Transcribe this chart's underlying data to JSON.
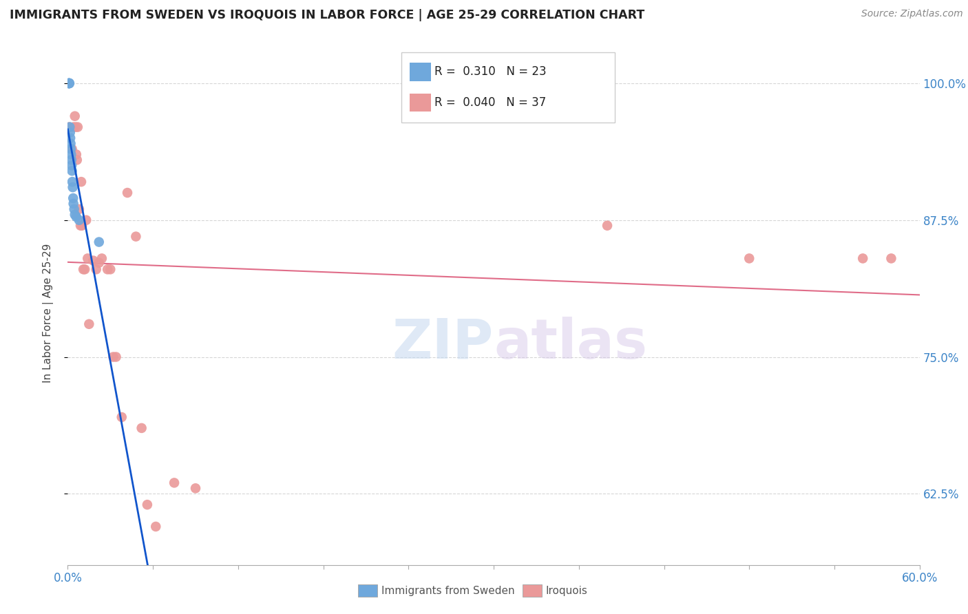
{
  "title": "IMMIGRANTS FROM SWEDEN VS IROQUOIS IN LABOR FORCE | AGE 25-29 CORRELATION CHART",
  "source": "Source: ZipAtlas.com",
  "ylabel": "In Labor Force | Age 25-29",
  "xlim": [
    0.0,
    0.6
  ],
  "ylim": [
    0.56,
    1.02
  ],
  "yticks": [
    0.625,
    0.75,
    0.875,
    1.0
  ],
  "ytick_labels": [
    "62.5%",
    "75.0%",
    "87.5%",
    "100.0%"
  ],
  "xticks": [
    0.0,
    0.06,
    0.12,
    0.18,
    0.24,
    0.3,
    0.36,
    0.42,
    0.48,
    0.54,
    0.6
  ],
  "xtick_labels_show": {
    "0.0": "0.0%",
    "0.60": "60.0%"
  },
  "sweden_R": 0.31,
  "sweden_N": 23,
  "iroquois_R": 0.04,
  "iroquois_N": 37,
  "sweden_color": "#6fa8dc",
  "iroquois_color": "#ea9999",
  "sweden_line_color": "#1155cc",
  "iroquois_line_color": "#e06c88",
  "watermark_zip": "ZIP",
  "watermark_atlas": "atlas",
  "sweden_x": [
    0.0008,
    0.0008,
    0.001,
    0.001,
    0.0012,
    0.0014,
    0.0016,
    0.0018,
    0.002,
    0.0022,
    0.0024,
    0.0026,
    0.0028,
    0.003,
    0.0032,
    0.0035,
    0.0038,
    0.004,
    0.0045,
    0.005,
    0.006,
    0.008,
    0.022
  ],
  "sweden_y": [
    1.0,
    1.0,
    1.0,
    1.0,
    1.0,
    0.96,
    0.955,
    0.95,
    0.945,
    0.94,
    0.935,
    0.93,
    0.925,
    0.92,
    0.91,
    0.905,
    0.895,
    0.89,
    0.885,
    0.88,
    0.878,
    0.875,
    0.855
  ],
  "iroquois_x": [
    0.001,
    0.003,
    0.004,
    0.005,
    0.0055,
    0.006,
    0.0065,
    0.007,
    0.008,
    0.009,
    0.0095,
    0.01,
    0.011,
    0.012,
    0.013,
    0.014,
    0.015,
    0.018,
    0.02,
    0.022,
    0.024,
    0.028,
    0.03,
    0.032,
    0.034,
    0.038,
    0.042,
    0.048,
    0.052,
    0.056,
    0.062,
    0.075,
    0.09,
    0.38,
    0.48,
    0.56,
    0.58
  ],
  "iroquois_y": [
    0.96,
    0.94,
    0.96,
    0.97,
    0.96,
    0.935,
    0.93,
    0.96,
    0.885,
    0.87,
    0.91,
    0.87,
    0.83,
    0.83,
    0.875,
    0.84,
    0.78,
    0.838,
    0.83,
    0.836,
    0.84,
    0.83,
    0.83,
    0.75,
    0.75,
    0.695,
    0.9,
    0.86,
    0.685,
    0.615,
    0.595,
    0.635,
    0.63,
    0.87,
    0.84,
    0.84,
    0.84
  ]
}
